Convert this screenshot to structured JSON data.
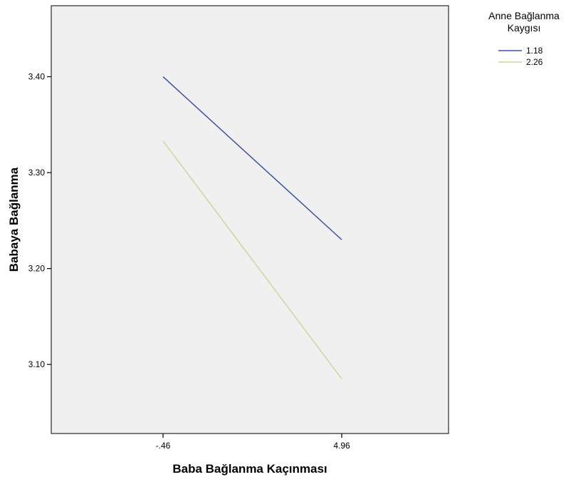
{
  "chart_data": {
    "type": "line",
    "title": "",
    "xlabel": "Baba Bağlanma Kaçınması",
    "ylabel": "Babaya Bağlanma",
    "x": [
      "-.46",
      "4.96"
    ],
    "series": [
      {
        "name": "1.18",
        "values": [
          3.4,
          3.23
        ],
        "color": "#3d4fa6"
      },
      {
        "name": "2.26",
        "values": [
          3.333,
          3.085
        ],
        "color": "#d3d49a"
      }
    ],
    "y_ticks": [
      "3.10",
      "3.20",
      "3.30",
      "3.40"
    ],
    "y_tick_values": [
      3.1,
      3.2,
      3.3,
      3.4
    ],
    "ylim": [
      3.028,
      3.474
    ],
    "legend": {
      "title_line1": "Anne Bağlanma",
      "title_line2": "Kaygısı",
      "placement": "top-right, outside plot"
    },
    "grid": false,
    "plot_background": "#f0f0f0"
  }
}
